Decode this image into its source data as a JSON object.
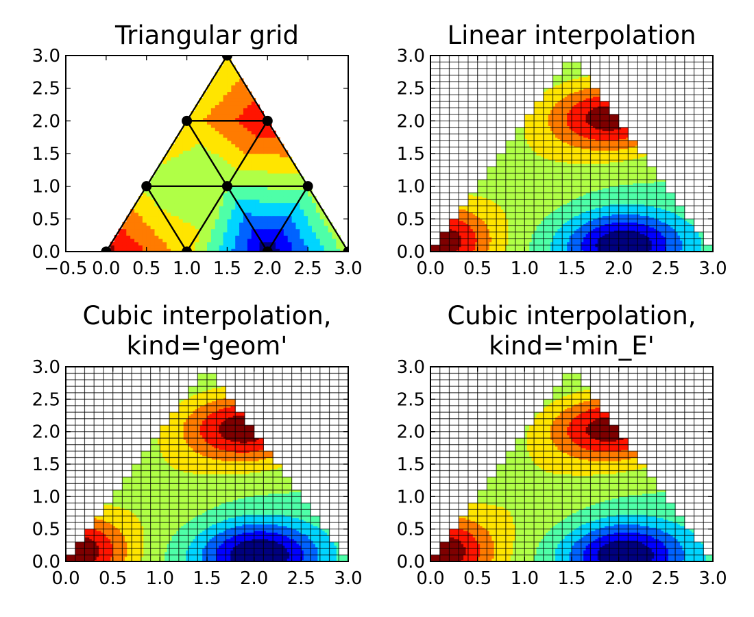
{
  "figure_style": {
    "colormap": "jet",
    "colors": [
      "#00007f",
      "#0000ff",
      "#0063ff",
      "#00d5ff",
      "#4effa8",
      "#b0ff46",
      "#ffe500",
      "#ff7b00",
      "#ff1400",
      "#7f0000"
    ],
    "grid_line_color": "#000000",
    "marker_color": "#000000"
  },
  "chart_data": [
    {
      "id": "triangular-grid",
      "type": "tricontourf",
      "title_lines": [
        "Triangular grid"
      ],
      "xlim": [
        -0.5,
        3.0
      ],
      "ylim": [
        0.0,
        3.0
      ],
      "xticks": [
        "−0.5",
        "0.0",
        "0.5",
        "1.0",
        "1.5",
        "2.0",
        "2.5",
        "3.0"
      ],
      "yticks": [
        "0.0",
        "0.5",
        "1.0",
        "1.5",
        "2.0",
        "2.5",
        "3.0"
      ],
      "grid": false,
      "show_mesh": true,
      "mesh_nodes": [
        {
          "x": 0.0,
          "y": 0.0
        },
        {
          "x": 1.0,
          "y": 0.0
        },
        {
          "x": 2.0,
          "y": 0.0
        },
        {
          "x": 3.0,
          "y": 0.0
        },
        {
          "x": 0.5,
          "y": 1.0
        },
        {
          "x": 1.5,
          "y": 1.0
        },
        {
          "x": 2.5,
          "y": 1.0
        },
        {
          "x": 1.0,
          "y": 2.0
        },
        {
          "x": 2.0,
          "y": 2.0
        },
        {
          "x": 1.5,
          "y": 3.0
        }
      ],
      "triangles": [
        [
          0,
          1,
          4
        ],
        [
          1,
          5,
          4
        ],
        [
          1,
          2,
          5
        ],
        [
          2,
          6,
          5
        ],
        [
          2,
          3,
          6
        ],
        [
          4,
          5,
          7
        ],
        [
          5,
          8,
          7
        ],
        [
          5,
          6,
          8
        ],
        [
          7,
          8,
          9
        ]
      ],
      "node_values": [
        0.88,
        0.3,
        -0.95,
        0.1,
        0.15,
        0.0,
        0.05,
        0.3,
        0.8,
        0.2
      ],
      "levels": [
        -1.0,
        -0.8,
        -0.6,
        -0.4,
        -0.2,
        0.0,
        0.2,
        0.4,
        0.6,
        0.8,
        1.0
      ]
    },
    {
      "id": "linear-interpolation",
      "type": "contourf",
      "title_lines": [
        "Linear interpolation"
      ],
      "xlim": [
        0.0,
        3.0
      ],
      "ylim": [
        0.0,
        3.0
      ],
      "xticks": [
        "0.0",
        "0.5",
        "1.0",
        "1.5",
        "2.0",
        "2.5",
        "3.0"
      ],
      "yticks": [
        "0.0",
        "0.5",
        "1.0",
        "1.5",
        "2.0",
        "2.5",
        "3.0"
      ],
      "grid": true,
      "grid_spacing": 0.1,
      "interpolation": "linear",
      "levels": [
        -1.0,
        -0.8,
        -0.6,
        -0.4,
        -0.2,
        0.0,
        0.2,
        0.4,
        0.6,
        0.8,
        1.0
      ]
    },
    {
      "id": "cubic-geom",
      "type": "contourf",
      "title_lines": [
        "Cubic interpolation,",
        "kind='geom'"
      ],
      "xlim": [
        0.0,
        3.0
      ],
      "ylim": [
        0.0,
        3.0
      ],
      "xticks": [
        "0.0",
        "0.5",
        "1.0",
        "1.5",
        "2.0",
        "2.5",
        "3.0"
      ],
      "yticks": [
        "0.0",
        "0.5",
        "1.0",
        "1.5",
        "2.0",
        "2.5",
        "3.0"
      ],
      "grid": true,
      "grid_spacing": 0.1,
      "interpolation": "cubic-geom",
      "levels": [
        -1.0,
        -0.8,
        -0.6,
        -0.4,
        -0.2,
        0.0,
        0.2,
        0.4,
        0.6,
        0.8,
        1.0
      ]
    },
    {
      "id": "cubic-min-e",
      "type": "contourf",
      "title_lines": [
        "Cubic interpolation,",
        "kind='min_E'"
      ],
      "xlim": [
        0.0,
        3.0
      ],
      "ylim": [
        0.0,
        3.0
      ],
      "xticks": [
        "0.0",
        "0.5",
        "1.0",
        "1.5",
        "2.0",
        "2.5",
        "3.0"
      ],
      "yticks": [
        "0.0",
        "0.5",
        "1.0",
        "1.5",
        "2.0",
        "2.5",
        "3.0"
      ],
      "grid": true,
      "grid_spacing": 0.1,
      "interpolation": "cubic-min_E",
      "levels": [
        -1.0,
        -0.8,
        -0.6,
        -0.4,
        -0.2,
        0.0,
        0.2,
        0.4,
        0.6,
        0.8,
        1.0
      ]
    }
  ]
}
